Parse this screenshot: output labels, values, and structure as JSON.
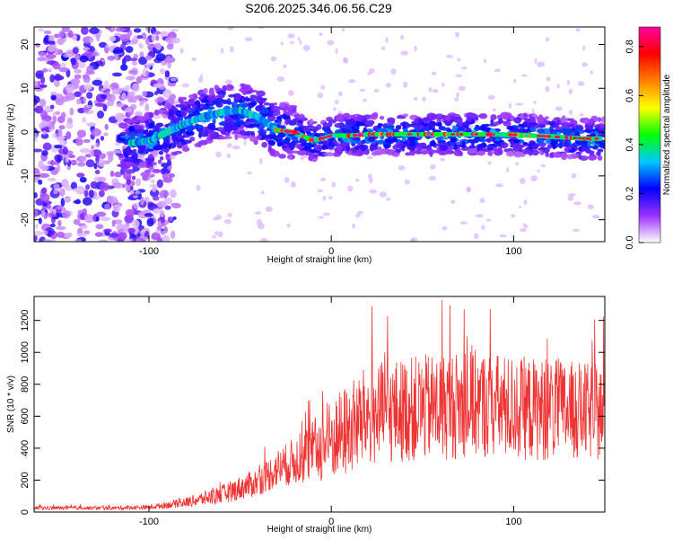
{
  "title": "S206.2025.346.06.56.C29",
  "chart_data": [
    {
      "type": "heatmap",
      "xlabel": "Height of straight line (km)",
      "ylabel": "Frequency (Hz)",
      "xlim": [
        -163,
        150
      ],
      "ylim": [
        -25,
        24
      ],
      "xticks": [
        -100,
        0,
        100
      ],
      "yticks": [
        -20,
        -10,
        0,
        10,
        20
      ],
      "colorbar": {
        "label": "Normalized spectral amplitude",
        "range": [
          0,
          0.88
        ],
        "ticks": [
          0.0,
          0.2,
          0.4,
          0.6,
          0.8
        ],
        "colors": [
          "#ffffff",
          "#9b30ff",
          "#0000ff",
          "#00c8ff",
          "#00ff00",
          "#ffff00",
          "#ff8000",
          "#ff0000",
          "#ff00a0"
        ]
      },
      "ridge": {
        "x": [
          -110,
          -100,
          -90,
          -80,
          -70,
          -60,
          -50,
          -40,
          -30,
          -20,
          -15,
          -10,
          0,
          10,
          20,
          50,
          80,
          100,
          120,
          140,
          148
        ],
        "y": [
          -2.5,
          -2,
          0,
          2,
          3.5,
          4.5,
          5,
          3.5,
          0.5,
          0,
          -1,
          -2,
          -0.8,
          -0.8,
          -0.5,
          -0.5,
          -0.5,
          -0.6,
          -1,
          -1.5,
          -1.5
        ]
      },
      "noise_region_xmax": -95
    },
    {
      "type": "line",
      "xlabel": "Height of straight line (km)",
      "ylabel": "SNR (10 * v/v)",
      "xlim": [
        -163,
        150
      ],
      "ylim": [
        0,
        1350
      ],
      "xticks": [
        -100,
        0,
        100
      ],
      "yticks": [
        0,
        200,
        400,
        600,
        800,
        1000,
        1200
      ],
      "color": "#ee3333",
      "envelope": {
        "x": [
          -163,
          -120,
          -100,
          -80,
          -60,
          -40,
          -30,
          -20,
          -10,
          0,
          10,
          20,
          40,
          60,
          80,
          100,
          120,
          150
        ],
        "mean": [
          25,
          25,
          30,
          60,
          110,
          190,
          270,
          320,
          380,
          450,
          520,
          600,
          640,
          660,
          680,
          650,
          640,
          620
        ],
        "spread": [
          12,
          12,
          15,
          30,
          60,
          90,
          120,
          150,
          200,
          260,
          300,
          320,
          330,
          340,
          340,
          330,
          320,
          300
        ]
      }
    }
  ]
}
